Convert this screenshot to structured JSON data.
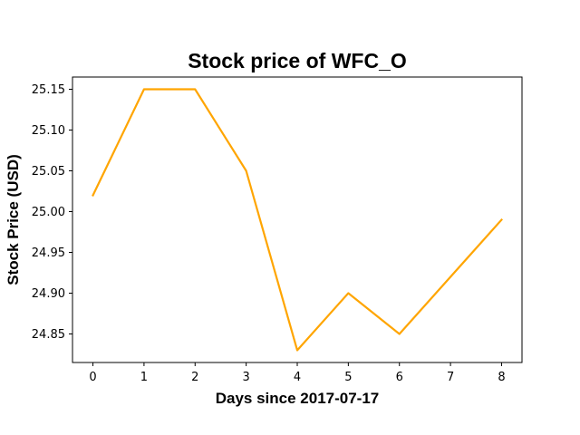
{
  "chart_data": {
    "type": "line",
    "title": "Stock price of WFC_O",
    "xlabel": "Days since 2017-07-17",
    "ylabel": "Stock Price (USD)",
    "x": [
      0,
      1,
      2,
      3,
      4,
      5,
      6,
      7,
      8
    ],
    "series": [
      {
        "values": [
          25.02,
          25.15,
          25.15,
          25.05,
          24.83,
          24.9,
          24.85,
          24.92,
          24.99
        ],
        "color": "#FFA500"
      }
    ],
    "xlim": [
      -0.4,
      8.4
    ],
    "ylim": [
      24.815,
      25.165
    ],
    "xticks": [
      0,
      1,
      2,
      3,
      4,
      5,
      6,
      7,
      8
    ],
    "xtick_labels": [
      "0",
      "1",
      "2",
      "3",
      "4",
      "5",
      "6",
      "7",
      "8"
    ],
    "yticks": [
      24.85,
      24.9,
      24.95,
      25.0,
      25.05,
      25.1,
      25.15
    ],
    "ytick_labels": [
      "24.85",
      "24.90",
      "24.95",
      "25.00",
      "25.05",
      "25.10",
      "25.15"
    ],
    "grid": false,
    "legend": false
  }
}
